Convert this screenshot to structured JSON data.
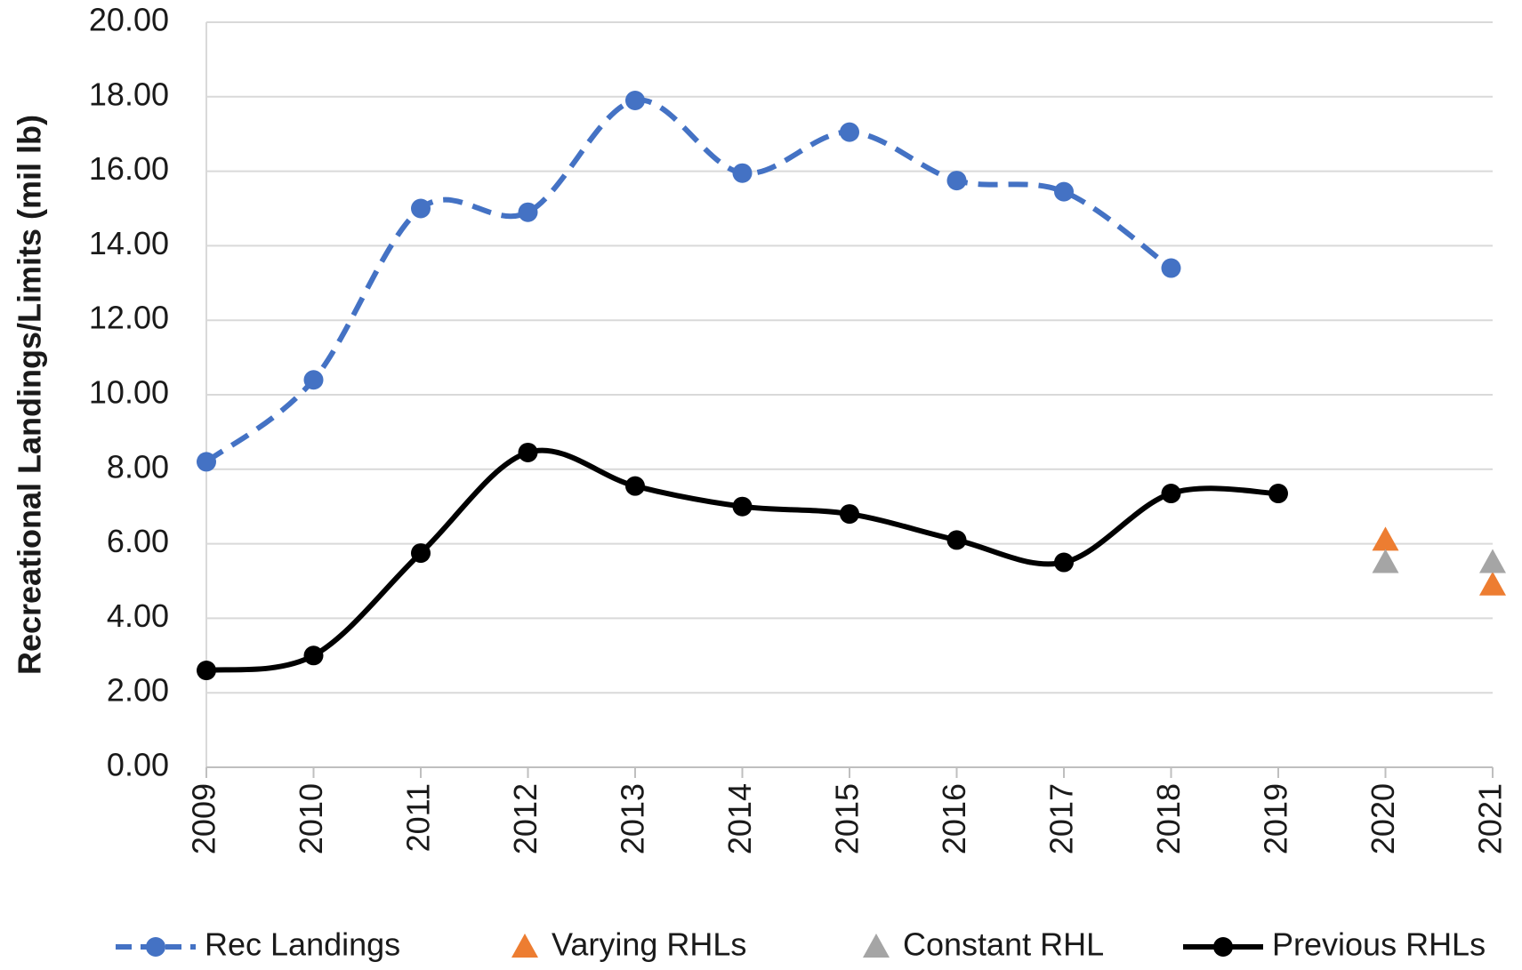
{
  "chart_data": {
    "type": "line",
    "y_label": "Recreational Landings/Limits (mil lb)",
    "categories": [
      "2009",
      "2010",
      "2011",
      "2012",
      "2013",
      "2014",
      "2015",
      "2016",
      "2017",
      "2018",
      "2019",
      "2020",
      "2021"
    ],
    "series": [
      {
        "name": "Rec Landings",
        "color": "#4472c4",
        "line": true,
        "dashed": true,
        "smooth": true,
        "marker": "circle",
        "values": [
          8.2,
          10.4,
          15.0,
          14.9,
          17.9,
          15.95,
          17.05,
          15.75,
          15.45,
          13.4,
          null,
          null,
          null
        ]
      },
      {
        "name": "Varying RHLs",
        "color": "#ed7d31",
        "line": false,
        "dashed": false,
        "smooth": false,
        "marker": "triangle",
        "values": [
          null,
          null,
          null,
          null,
          null,
          null,
          null,
          null,
          null,
          null,
          null,
          6.1,
          4.9
        ]
      },
      {
        "name": "Constant RHL",
        "color": "#a5a5a5",
        "line": false,
        "dashed": false,
        "smooth": false,
        "marker": "triangle",
        "values": [
          null,
          null,
          null,
          null,
          null,
          null,
          null,
          null,
          null,
          null,
          null,
          5.5,
          5.5
        ]
      },
      {
        "name": "Previous RHLs",
        "color": "#000000",
        "line": true,
        "dashed": false,
        "smooth": true,
        "marker": "circle",
        "values": [
          2.6,
          3.0,
          5.75,
          8.45,
          7.55,
          7.0,
          6.8,
          6.1,
          5.5,
          7.35,
          7.35,
          null,
          null
        ]
      }
    ],
    "ylim": [
      0,
      20
    ],
    "yticks": [
      {
        "value": 0,
        "label": "0.00"
      },
      {
        "value": 2,
        "label": "2.00"
      },
      {
        "value": 4,
        "label": "4.00"
      },
      {
        "value": 6,
        "label": "6.00"
      },
      {
        "value": 8,
        "label": "8.00"
      },
      {
        "value": 10,
        "label": "10.00"
      },
      {
        "value": 12,
        "label": "12.00"
      },
      {
        "value": 14,
        "label": "14.00"
      },
      {
        "value": 16,
        "label": "16.00"
      },
      {
        "value": 18,
        "label": "18.00"
      },
      {
        "value": 20,
        "label": "20.00"
      }
    ],
    "grid": true,
    "legend": "bottom"
  }
}
